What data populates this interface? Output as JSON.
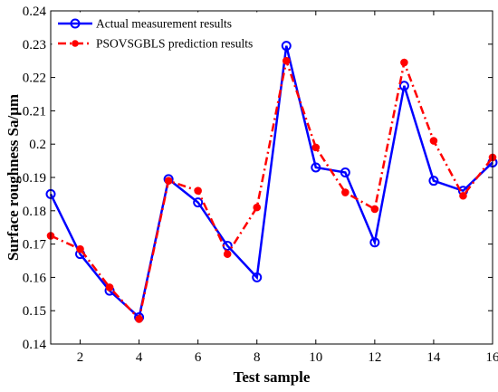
{
  "chart_data": {
    "type": "line",
    "xlabel": "Test sample",
    "ylabel": "Surface roughness Sa/μm",
    "xlim": [
      1,
      16
    ],
    "ylim": [
      0.14,
      0.24
    ],
    "xticks": [
      2,
      4,
      6,
      8,
      10,
      12,
      14,
      16
    ],
    "yticks": [
      0.14,
      0.15,
      0.16,
      0.17,
      0.18,
      0.19,
      0.2,
      0.21,
      0.22,
      0.23,
      0.24
    ],
    "ytick_labels": [
      "0.14",
      "0.15",
      "0.16",
      "0.17",
      "0.18",
      "0.19",
      "0.2",
      "0.21",
      "0.22",
      "0.23",
      "0.24"
    ],
    "grid": false,
    "legend_position": "top-left",
    "x": [
      1,
      2,
      3,
      4,
      5,
      6,
      7,
      8,
      9,
      10,
      11,
      12,
      13,
      14,
      15,
      16
    ],
    "series": [
      {
        "name": "Actual measurement results",
        "color": "#0000ff",
        "line_style": "solid",
        "marker": "open-circle",
        "values": [
          0.185,
          0.167,
          0.156,
          0.148,
          0.1895,
          0.1825,
          0.1695,
          0.16,
          0.2295,
          0.193,
          0.1915,
          0.1705,
          0.2175,
          0.189,
          0.186,
          0.1945
        ]
      },
      {
        "name": "PSOVSGBLS prediction results",
        "color": "#ff0000",
        "line_style": "dash-dot",
        "marker": "filled-circle",
        "values": [
          0.1725,
          0.1685,
          0.157,
          0.1475,
          0.189,
          0.186,
          0.167,
          0.181,
          0.225,
          0.199,
          0.1855,
          0.1805,
          0.2245,
          0.201,
          0.1845,
          0.196
        ]
      }
    ]
  }
}
